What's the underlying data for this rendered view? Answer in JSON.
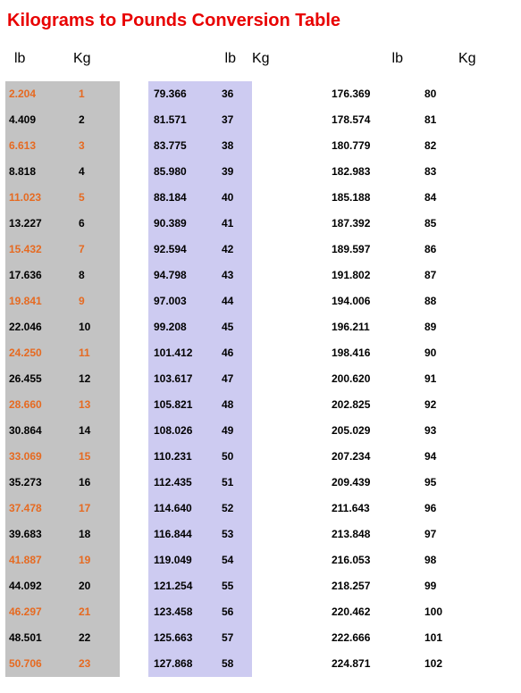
{
  "title": "Kilograms to Pounds Conversion Table",
  "headers": {
    "lb": "lb",
    "kg": "Kg"
  },
  "columns": [
    {
      "bg": "#c3c3c3",
      "highlight_odd": true,
      "rows": [
        {
          "lb": "2.204",
          "kg": "1"
        },
        {
          "lb": "4.409",
          "kg": "2"
        },
        {
          "lb": "6.613",
          "kg": "3"
        },
        {
          "lb": "8.818",
          "kg": "4"
        },
        {
          "lb": "11.023",
          "kg": "5"
        },
        {
          "lb": "13.227",
          "kg": "6"
        },
        {
          "lb": "15.432",
          "kg": "7"
        },
        {
          "lb": "17.636",
          "kg": "8"
        },
        {
          "lb": "19.841",
          "kg": "9"
        },
        {
          "lb": "22.046",
          "kg": "10"
        },
        {
          "lb": "24.250",
          "kg": "11"
        },
        {
          "lb": "26.455",
          "kg": "12"
        },
        {
          "lb": "28.660",
          "kg": "13"
        },
        {
          "lb": "30.864",
          "kg": "14"
        },
        {
          "lb": "33.069",
          "kg": "15"
        },
        {
          "lb": "35.273",
          "kg": "16"
        },
        {
          "lb": "37.478",
          "kg": "17"
        },
        {
          "lb": "39.683",
          "kg": "18"
        },
        {
          "lb": "41.887",
          "kg": "19"
        },
        {
          "lb": "44.092",
          "kg": "20"
        },
        {
          "lb": "46.297",
          "kg": "21"
        },
        {
          "lb": "48.501",
          "kg": "22"
        },
        {
          "lb": "50.706",
          "kg": "23"
        }
      ]
    },
    {
      "bg": "#cdcbf1",
      "highlight_odd": false,
      "rows": [
        {
          "lb": "79.366",
          "kg": "36"
        },
        {
          "lb": "81.571",
          "kg": "37"
        },
        {
          "lb": "83.775",
          "kg": "38"
        },
        {
          "lb": "85.980",
          "kg": "39"
        },
        {
          "lb": "88.184",
          "kg": "40"
        },
        {
          "lb": "90.389",
          "kg": "41"
        },
        {
          "lb": "92.594",
          "kg": "42"
        },
        {
          "lb": "94.798",
          "kg": "43"
        },
        {
          "lb": "97.003",
          "kg": "44"
        },
        {
          "lb": "99.208",
          "kg": "45"
        },
        {
          "lb": "101.412",
          "kg": "46"
        },
        {
          "lb": "103.617",
          "kg": "47"
        },
        {
          "lb": "105.821",
          "kg": "48"
        },
        {
          "lb": "108.026",
          "kg": "49"
        },
        {
          "lb": "110.231",
          "kg": "50"
        },
        {
          "lb": "112.435",
          "kg": "51"
        },
        {
          "lb": "114.640",
          "kg": "52"
        },
        {
          "lb": "116.844",
          "kg": "53"
        },
        {
          "lb": "119.049",
          "kg": "54"
        },
        {
          "lb": "121.254",
          "kg": "55"
        },
        {
          "lb": "123.458",
          "kg": "56"
        },
        {
          "lb": "125.663",
          "kg": "57"
        },
        {
          "lb": "127.868",
          "kg": "58"
        }
      ]
    },
    {
      "bg": "#ffffff",
      "highlight_odd": false,
      "rows": [
        {
          "lb": "176.369",
          "kg": "80"
        },
        {
          "lb": "178.574",
          "kg": "81"
        },
        {
          "lb": "180.779",
          "kg": "82"
        },
        {
          "lb": "182.983",
          "kg": "83"
        },
        {
          "lb": "185.188",
          "kg": "84"
        },
        {
          "lb": "187.392",
          "kg": "85"
        },
        {
          "lb": "189.597",
          "kg": "86"
        },
        {
          "lb": "191.802",
          "kg": "87"
        },
        {
          "lb": "194.006",
          "kg": "88"
        },
        {
          "lb": "196.211",
          "kg": "89"
        },
        {
          "lb": "198.416",
          "kg": "90"
        },
        {
          "lb": "200.620",
          "kg": "91"
        },
        {
          "lb": "202.825",
          "kg": "92"
        },
        {
          "lb": "205.029",
          "kg": "93"
        },
        {
          "lb": "207.234",
          "kg": "94"
        },
        {
          "lb": "209.439",
          "kg": "95"
        },
        {
          "lb": "211.643",
          "kg": "96"
        },
        {
          "lb": "213.848",
          "kg": "97"
        },
        {
          "lb": "216.053",
          "kg": "98"
        },
        {
          "lb": "218.257",
          "kg": "99"
        },
        {
          "lb": "220.462",
          "kg": "100"
        },
        {
          "lb": "222.666",
          "kg": "101"
        },
        {
          "lb": "224.871",
          "kg": "102"
        }
      ]
    }
  ]
}
